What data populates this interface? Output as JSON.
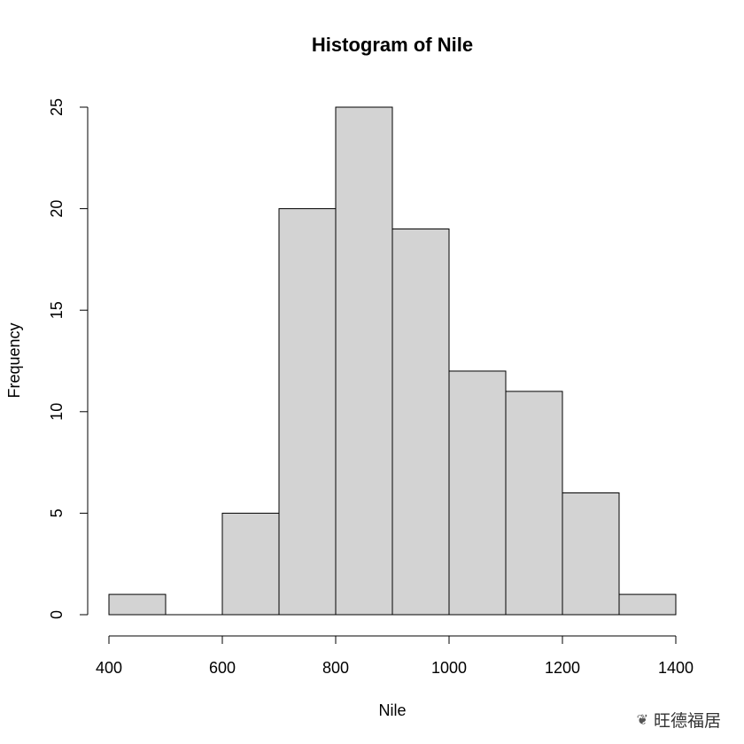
{
  "chart_data": {
    "type": "bar",
    "title": "Histogram of Nile",
    "xlabel": "Nile",
    "ylabel": "Frequency",
    "bins": [
      {
        "from": 400,
        "to": 500,
        "count": 1
      },
      {
        "from": 500,
        "to": 600,
        "count": 0
      },
      {
        "from": 600,
        "to": 700,
        "count": 5
      },
      {
        "from": 700,
        "to": 800,
        "count": 20
      },
      {
        "from": 800,
        "to": 900,
        "count": 25
      },
      {
        "from": 900,
        "to": 1000,
        "count": 19
      },
      {
        "from": 1000,
        "to": 1100,
        "count": 12
      },
      {
        "from": 1100,
        "to": 1200,
        "count": 11
      },
      {
        "from": 1200,
        "to": 1300,
        "count": 6
      },
      {
        "from": 1300,
        "to": 1400,
        "count": 1
      }
    ],
    "xlim": [
      400,
      1400
    ],
    "ylim": [
      0,
      25
    ],
    "xticks": [
      "400",
      "600",
      "800",
      "1000",
      "1200",
      "1400"
    ],
    "yticks": [
      "0",
      "5",
      "10",
      "15",
      "20",
      "25"
    ],
    "grid": false,
    "bar_color": "#d3d3d3",
    "edge_color": "#000000"
  },
  "watermark": {
    "icon": "wechat-icon",
    "text": "旺德福居"
  }
}
